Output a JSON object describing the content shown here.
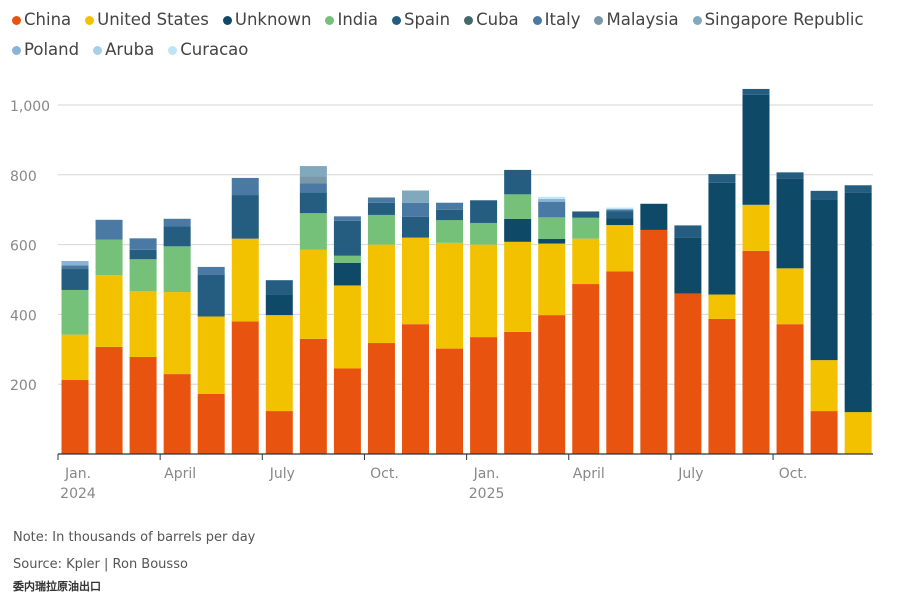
{
  "chart_data": {
    "type": "bar",
    "stacked": true,
    "categories": [
      "Jan 2024",
      "Feb 2024",
      "Mar 2024",
      "Apr 2024",
      "May 2024",
      "Jun 2024",
      "Jul 2024",
      "Aug 2024",
      "Sep 2024",
      "Oct 2024",
      "Nov 2024",
      "Dec 2024",
      "Jan 2025",
      "Feb 2025",
      "Mar 2025",
      "Apr 2025",
      "May 2025",
      "Jun 2025",
      "Jul 2025",
      "Aug 2025",
      "Sep 2025",
      "Oct 2025",
      "Nov 2025",
      "Dec 2025"
    ],
    "x_tick_labels": [
      {
        "index": 0,
        "label": "Jan.",
        "sub": "2024"
      },
      {
        "index": 3,
        "label": "April",
        "sub": ""
      },
      {
        "index": 6,
        "label": "July",
        "sub": ""
      },
      {
        "index": 9,
        "label": "Oct.",
        "sub": ""
      },
      {
        "index": 12,
        "label": "Jan.",
        "sub": "2025"
      },
      {
        "index": 15,
        "label": "April",
        "sub": ""
      },
      {
        "index": 18,
        "label": "July",
        "sub": ""
      },
      {
        "index": 21,
        "label": "Oct.",
        "sub": ""
      }
    ],
    "ylim": [
      0,
      1000
    ],
    "y_ticks": [
      200,
      400,
      600,
      800,
      1000
    ],
    "y_tick_labels": [
      "200",
      "400",
      "600",
      "800",
      "1,000"
    ],
    "grid": true,
    "legend_position": "top",
    "series": [
      {
        "name": "China",
        "color": "#e8540f",
        "values": [
          212,
          307,
          278,
          229,
          172,
          380,
          123,
          330,
          245,
          318,
          372,
          302,
          335,
          350,
          398,
          487,
          523,
          642,
          460,
          387,
          582,
          372,
          123,
          0
        ]
      },
      {
        "name": "United States",
        "color": "#f2c200",
        "values": [
          130,
          205,
          188,
          235,
          222,
          237,
          275,
          255,
          238,
          282,
          248,
          303,
          265,
          258,
          205,
          130,
          133,
          0,
          0,
          70,
          132,
          160,
          146,
          120
        ]
      },
      {
        "name": "Unknown",
        "color": "#0e4a67",
        "values": [
          0,
          0,
          0,
          0,
          0,
          0,
          60,
          0,
          65,
          0,
          0,
          0,
          0,
          66,
          13,
          0,
          20,
          75,
          160,
          320,
          315,
          258,
          460,
          630
        ]
      },
      {
        "name": "India",
        "color": "#76c17a",
        "values": [
          128,
          102,
          92,
          131,
          0,
          0,
          0,
          105,
          20,
          85,
          0,
          65,
          62,
          70,
          62,
          60,
          0,
          0,
          0,
          0,
          0,
          0,
          0,
          0
        ]
      },
      {
        "name": "Spain",
        "color": "#245d80",
        "values": [
          60,
          0,
          27,
          57,
          120,
          125,
          40,
          60,
          100,
          35,
          60,
          30,
          65,
          70,
          0,
          18,
          20,
          0,
          35,
          25,
          17,
          17,
          25,
          20
        ]
      },
      {
        "name": "Cuba",
        "color": "#44696b",
        "values": [
          0,
          0,
          0,
          0,
          0,
          0,
          0,
          0,
          0,
          0,
          0,
          0,
          0,
          0,
          0,
          0,
          0,
          0,
          0,
          0,
          0,
          0,
          0,
          0
        ]
      },
      {
        "name": "Italy",
        "color": "#4a7aa3",
        "values": [
          10,
          57,
          33,
          22,
          22,
          49,
          0,
          25,
          13,
          15,
          40,
          20,
          0,
          0,
          45,
          0,
          5,
          0,
          0,
          0,
          0,
          0,
          0,
          0
        ]
      },
      {
        "name": "Malaysia",
        "color": "#7a98a8",
        "values": [
          0,
          0,
          0,
          0,
          0,
          0,
          0,
          20,
          0,
          0,
          0,
          0,
          0,
          0,
          0,
          0,
          0,
          0,
          0,
          0,
          0,
          0,
          0,
          0
        ]
      },
      {
        "name": "Singapore Republic",
        "color": "#80a9bd",
        "values": [
          0,
          0,
          0,
          0,
          0,
          0,
          0,
          30,
          0,
          0,
          35,
          0,
          0,
          0,
          0,
          0,
          0,
          0,
          0,
          0,
          0,
          0,
          0,
          0
        ]
      },
      {
        "name": "Poland",
        "color": "#8ab4d6",
        "values": [
          13,
          0,
          0,
          0,
          0,
          0,
          0,
          0,
          0,
          0,
          0,
          0,
          0,
          0,
          8,
          0,
          0,
          0,
          0,
          0,
          0,
          0,
          0,
          0
        ]
      },
      {
        "name": "Aruba",
        "color": "#a8d0e8",
        "values": [
          0,
          0,
          0,
          0,
          0,
          0,
          0,
          0,
          0,
          0,
          0,
          0,
          0,
          0,
          0,
          0,
          0,
          0,
          0,
          0,
          0,
          0,
          0,
          0
        ]
      },
      {
        "name": "Curacao",
        "color": "#bde5f5",
        "values": [
          0,
          0,
          0,
          0,
          0,
          0,
          0,
          0,
          0,
          0,
          0,
          0,
          0,
          0,
          6,
          0,
          5,
          0,
          0,
          0,
          0,
          0,
          0,
          0
        ]
      }
    ]
  },
  "notes": {
    "note": "Note: In thousands of barrels per day",
    "source": "Source: Kpler | Ron Bousso",
    "caption": "委内瑞拉原油出口"
  }
}
